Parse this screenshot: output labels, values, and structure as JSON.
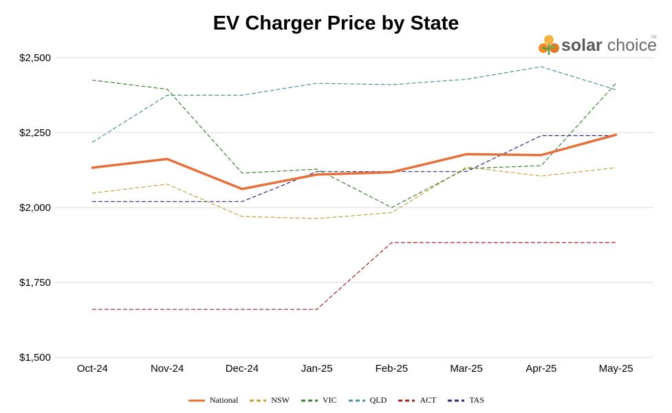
{
  "chart_data": {
    "type": "line",
    "title": "EV Charger Price by State",
    "categories": [
      "Oct-24",
      "Nov-24",
      "Dec-24",
      "Jan-25",
      "Feb-25",
      "Mar-25",
      "Apr-25",
      "May-25"
    ],
    "y_ticks": [
      "$1,500",
      "$1,750",
      "$2,000",
      "$2,250",
      "$2,500"
    ],
    "ylim": [
      1500,
      2500
    ],
    "grid": "horizontal",
    "legend_position": "bottom",
    "series": [
      {
        "name": "National",
        "color": "#E5703A",
        "style": "solid",
        "values": [
          2133,
          2162,
          2062,
          2110,
          2118,
          2178,
          2175,
          2243
        ]
      },
      {
        "name": "NSW",
        "color": "#C8A23A",
        "style": "dashed",
        "values": [
          2048,
          2078,
          1970,
          1963,
          1983,
          2135,
          2105,
          2133
        ]
      },
      {
        "name": "VIC",
        "color": "#3D7F34",
        "style": "dashed",
        "values": [
          2425,
          2395,
          2115,
          2128,
          2000,
          2130,
          2140,
          2415
        ]
      },
      {
        "name": "QLD",
        "color": "#4A9098",
        "style": "dashed",
        "values": [
          2218,
          2375,
          2375,
          2415,
          2410,
          2428,
          2470,
          2393
        ]
      },
      {
        "name": "ACT",
        "color": "#A11F1F",
        "style": "dashed",
        "values": [
          1660,
          1660,
          1660,
          1660,
          1883,
          1883,
          1883,
          1883
        ]
      },
      {
        "name": "TAS",
        "color": "#2E2A78",
        "style": "dashed",
        "values": [
          2020,
          2020,
          2020,
          2120,
          2120,
          2120,
          2240,
          2240
        ]
      }
    ]
  },
  "logo": {
    "text_bold": "solar",
    "text_regular": " choice",
    "tm": "TM",
    "colors": [
      "#F08A2B",
      "#F5B544",
      "#5A9A3A"
    ]
  }
}
